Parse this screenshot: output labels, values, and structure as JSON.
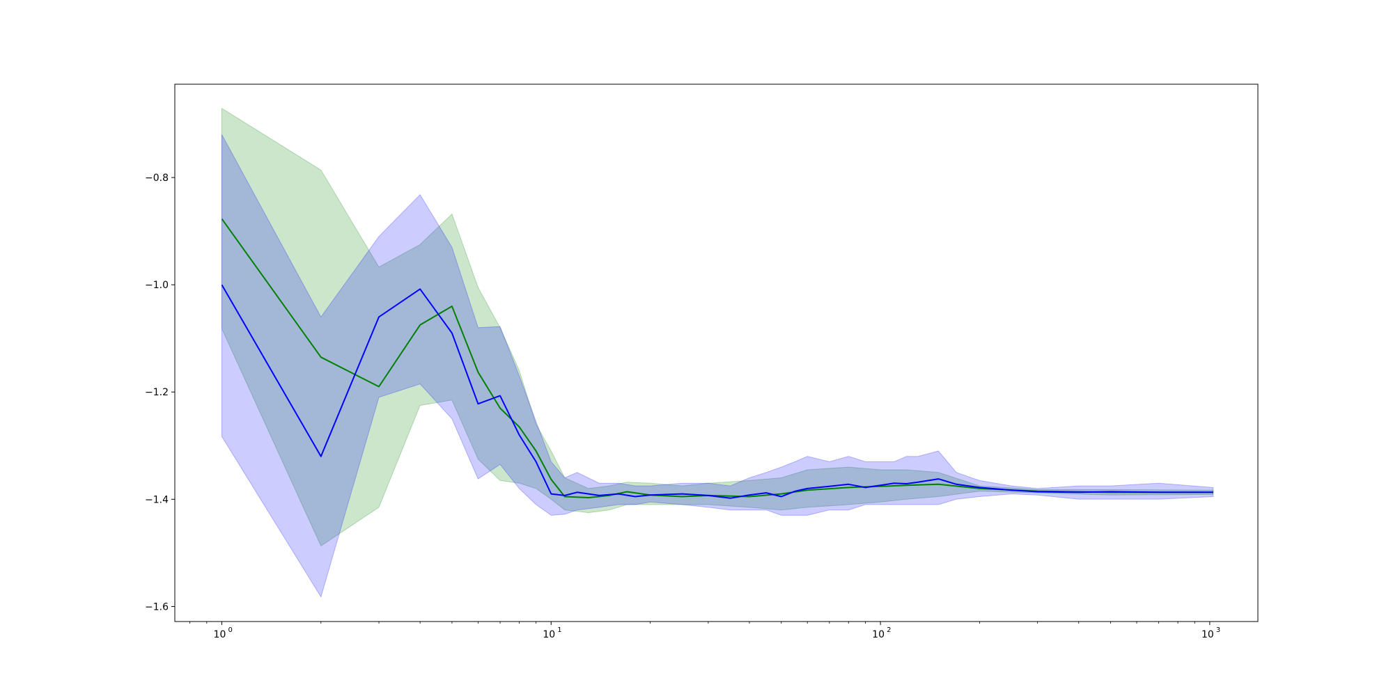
{
  "chart_data": {
    "type": "line",
    "title": "",
    "xlabel": "",
    "ylabel": "",
    "xscale": "log",
    "xlim": [
      0.72,
      1400
    ],
    "ylim": [
      -1.628,
      -0.626
    ],
    "grid": false,
    "legend": "none",
    "x_ticks": [
      {
        "value": 1,
        "base": "10",
        "exp": "0"
      },
      {
        "value": 10,
        "base": "10",
        "exp": "1"
      },
      {
        "value": 100,
        "base": "10",
        "exp": "2"
      },
      {
        "value": 1000,
        "base": "10",
        "exp": "3"
      }
    ],
    "y_ticks": [
      {
        "value": -0.8,
        "label": "−0.8"
      },
      {
        "value": -1.0,
        "label": "−1.0"
      },
      {
        "value": -1.2,
        "label": "−1.2"
      },
      {
        "value": -1.4,
        "label": "−1.4"
      },
      {
        "value": -1.6,
        "label": "−1.6"
      }
    ],
    "series": [
      {
        "color": "#008000",
        "band_color": "#008000",
        "band_opacity": 0.2,
        "x": [
          1,
          2,
          3,
          4,
          5,
          6,
          7,
          8,
          9,
          10,
          11,
          13,
          15,
          17,
          20,
          25,
          30,
          40,
          50,
          60,
          80,
          100,
          120,
          150,
          200,
          300,
          500,
          1024
        ],
        "mean": [
          -0.877,
          -1.135,
          -1.19,
          -1.075,
          -1.04,
          -1.163,
          -1.23,
          -1.265,
          -1.31,
          -1.363,
          -1.395,
          -1.397,
          -1.393,
          -1.386,
          -1.392,
          -1.395,
          -1.393,
          -1.395,
          -1.39,
          -1.383,
          -1.378,
          -1.376,
          -1.374,
          -1.372,
          -1.38,
          -1.385,
          -1.387,
          -1.387
        ],
        "upper": [
          -0.671,
          -0.786,
          -0.967,
          -0.925,
          -0.868,
          -1.005,
          -1.08,
          -1.16,
          -1.26,
          -1.31,
          -1.36,
          -1.38,
          -1.375,
          -1.368,
          -1.37,
          -1.375,
          -1.37,
          -1.365,
          -1.36,
          -1.345,
          -1.34,
          -1.345,
          -1.345,
          -1.35,
          -1.375,
          -1.382,
          -1.382,
          -1.383
        ],
        "lower": [
          -1.082,
          -1.487,
          -1.415,
          -1.225,
          -1.215,
          -1.325,
          -1.365,
          -1.37,
          -1.38,
          -1.4,
          -1.42,
          -1.425,
          -1.42,
          -1.41,
          -1.41,
          -1.41,
          -1.41,
          -1.415,
          -1.42,
          -1.415,
          -1.41,
          -1.405,
          -1.4,
          -1.395,
          -1.385,
          -1.388,
          -1.392,
          -1.391
        ]
      },
      {
        "color": "#0000ff",
        "band_color": "#0000ff",
        "band_opacity": 0.2,
        "x": [
          1,
          2,
          3,
          4,
          5,
          6,
          7,
          8,
          9,
          10,
          11,
          12,
          14,
          16,
          18,
          20,
          25,
          30,
          35,
          40,
          45,
          50,
          55,
          60,
          70,
          80,
          90,
          100,
          110,
          120,
          130,
          150,
          170,
          200,
          250,
          300,
          400,
          500,
          700,
          1024
        ],
        "mean": [
          -1.0,
          -1.32,
          -1.06,
          -1.008,
          -1.09,
          -1.222,
          -1.207,
          -1.28,
          -1.33,
          -1.39,
          -1.393,
          -1.387,
          -1.393,
          -1.39,
          -1.395,
          -1.392,
          -1.39,
          -1.393,
          -1.398,
          -1.392,
          -1.388,
          -1.395,
          -1.385,
          -1.38,
          -1.376,
          -1.372,
          -1.378,
          -1.374,
          -1.37,
          -1.371,
          -1.368,
          -1.362,
          -1.372,
          -1.378,
          -1.383,
          -1.386,
          -1.387,
          -1.386,
          -1.387,
          -1.387
        ],
        "upper": [
          -0.72,
          -1.06,
          -0.91,
          -0.832,
          -0.93,
          -1.08,
          -1.078,
          -1.17,
          -1.255,
          -1.33,
          -1.36,
          -1.35,
          -1.37,
          -1.37,
          -1.375,
          -1.375,
          -1.37,
          -1.37,
          -1.375,
          -1.36,
          -1.35,
          -1.34,
          -1.33,
          -1.32,
          -1.33,
          -1.32,
          -1.33,
          -1.33,
          -1.33,
          -1.32,
          -1.32,
          -1.31,
          -1.35,
          -1.365,
          -1.375,
          -1.38,
          -1.375,
          -1.375,
          -1.37,
          -1.378
        ],
        "lower": [
          -1.283,
          -1.582,
          -1.21,
          -1.185,
          -1.25,
          -1.362,
          -1.335,
          -1.38,
          -1.41,
          -1.43,
          -1.428,
          -1.42,
          -1.415,
          -1.41,
          -1.41,
          -1.405,
          -1.41,
          -1.415,
          -1.42,
          -1.42,
          -1.42,
          -1.43,
          -1.43,
          -1.43,
          -1.42,
          -1.42,
          -1.41,
          -1.41,
          -1.41,
          -1.41,
          -1.41,
          -1.41,
          -1.4,
          -1.395,
          -1.39,
          -1.392,
          -1.4,
          -1.4,
          -1.4,
          -1.395
        ]
      }
    ]
  }
}
